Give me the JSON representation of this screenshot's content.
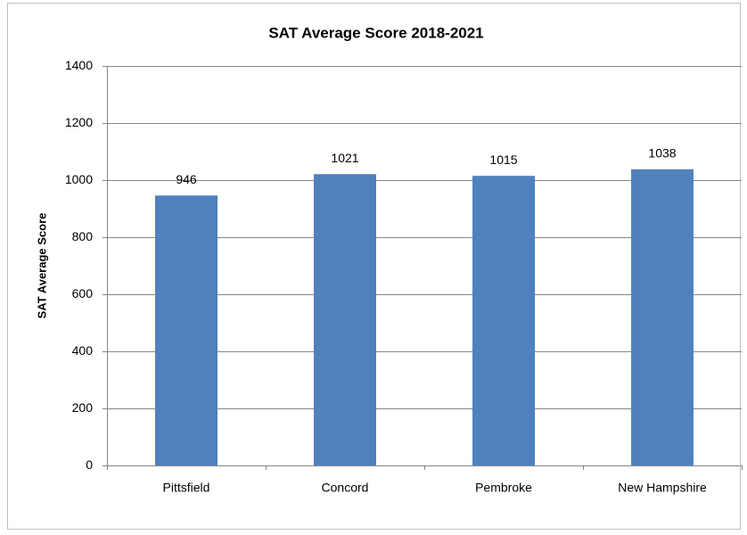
{
  "chart_data": {
    "type": "bar",
    "title": "SAT Average Score 2018-2021",
    "ylabel": "SAT Average Score",
    "categories": [
      "Pittsfield",
      "Concord",
      "Pembroke",
      "New Hampshire"
    ],
    "values": [
      946,
      1021,
      1015,
      1038
    ],
    "color": "#4f81bd",
    "ylim": [
      0,
      1400
    ],
    "yticks": [
      0,
      200,
      400,
      600,
      800,
      1000,
      1200,
      1400
    ],
    "grid": true
  }
}
